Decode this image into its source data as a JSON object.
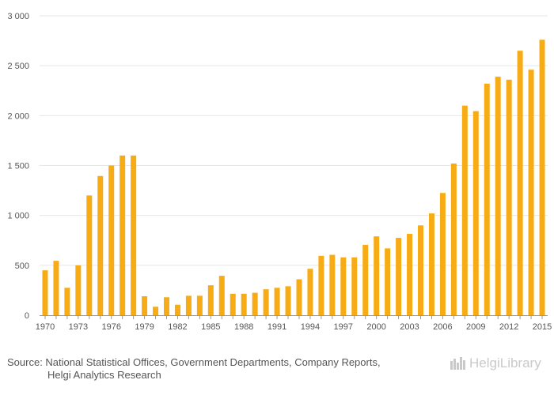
{
  "chart_data": {
    "type": "bar",
    "title": "",
    "xlabel": "",
    "ylabel": "",
    "ylim": [
      0,
      3000
    ],
    "yticks": [
      0,
      500,
      1000,
      1500,
      2000,
      2500,
      3000
    ],
    "ytick_labels": [
      "0",
      "500",
      "1 000",
      "1 500",
      "2 000",
      "2 500",
      "3 000"
    ],
    "categories": [
      1970,
      1971,
      1972,
      1973,
      1974,
      1975,
      1976,
      1977,
      1978,
      1979,
      1980,
      1981,
      1982,
      1983,
      1984,
      1985,
      1986,
      1987,
      1988,
      1989,
      1990,
      1991,
      1992,
      1993,
      1994,
      1995,
      1996,
      1997,
      1998,
      1999,
      2000,
      2001,
      2002,
      2003,
      2004,
      2005,
      2006,
      2007,
      2008,
      2009,
      2010,
      2011,
      2012,
      2013,
      2014,
      2015
    ],
    "values": [
      450,
      545,
      275,
      500,
      1200,
      1395,
      1500,
      1600,
      1600,
      190,
      85,
      180,
      105,
      195,
      195,
      300,
      395,
      215,
      215,
      225,
      260,
      275,
      290,
      360,
      465,
      595,
      605,
      580,
      580,
      705,
      790,
      670,
      775,
      815,
      900,
      1020,
      1225,
      1520,
      2100,
      2045,
      2320,
      2390,
      2360,
      2650,
      2460,
      2760
    ],
    "xtick_labels": [
      "1970",
      "1973",
      "1976",
      "1979",
      "1982",
      "1985",
      "1988",
      "1991",
      "1994",
      "1997",
      "2000",
      "2003",
      "2006",
      "2009",
      "2012",
      "2015"
    ],
    "grid": true,
    "colors": {
      "bar": "#F7AC16",
      "grid": "#e6e6e6",
      "axis": "#999999"
    }
  },
  "footer": {
    "source_line1": "Source: National Statistical Offices, Government Departments, Company Reports,",
    "source_line2": "Helgi Analytics Research",
    "logo_text": "HelgiLibrary"
  }
}
